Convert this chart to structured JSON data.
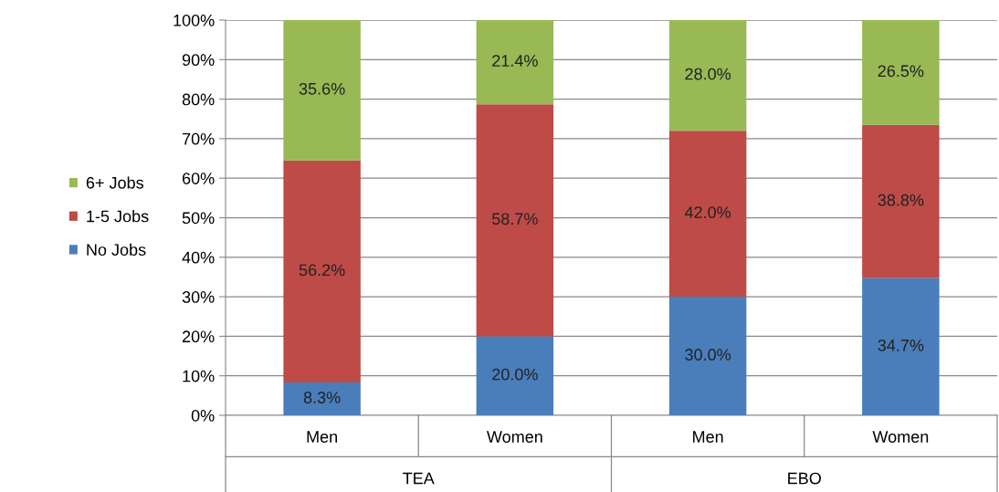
{
  "chart_data": {
    "type": "bar",
    "stacked": true,
    "categories": [
      "Men",
      "Women",
      "Men",
      "Women"
    ],
    "series": [
      {
        "name": "No Jobs",
        "color": "#4a7ebb",
        "values": [
          8.3,
          20.0,
          30.0,
          34.7
        ],
        "value_labels": [
          "8.3%",
          "20.0%",
          "30.0%",
          "34.7%"
        ]
      },
      {
        "name": "1-5 Jobs",
        "color": "#be4b48",
        "values": [
          56.2,
          58.7,
          42.0,
          38.8
        ],
        "value_labels": [
          "56.2%",
          "58.7%",
          "42.0%",
          "38.8%"
        ]
      },
      {
        "name": "6+ Jobs",
        "color": "#98b954",
        "values": [
          35.6,
          21.4,
          28.0,
          26.5
        ],
        "value_labels": [
          "35.6%",
          "21.4%",
          "28.0%",
          "26.5%"
        ]
      }
    ],
    "ylim": [
      0,
      100
    ],
    "yticks": [
      {
        "value": 0,
        "label": "0%"
      },
      {
        "value": 10,
        "label": "10%"
      },
      {
        "value": 20,
        "label": "20%"
      },
      {
        "value": 30,
        "label": "30%"
      },
      {
        "value": 40,
        "label": "40%"
      },
      {
        "value": 50,
        "label": "50%"
      },
      {
        "value": 60,
        "label": "60%"
      },
      {
        "value": 70,
        "label": "70%"
      },
      {
        "value": 80,
        "label": "80%"
      },
      {
        "value": 90,
        "label": "90%"
      },
      {
        "value": 100,
        "label": "100%"
      }
    ],
    "grid": "y",
    "legend": "left",
    "annotations": [
      "TEA",
      "EBO"
    ]
  }
}
